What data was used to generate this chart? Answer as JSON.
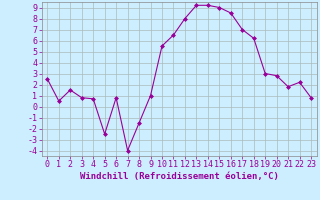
{
  "x": [
    0,
    1,
    2,
    3,
    4,
    5,
    6,
    7,
    8,
    9,
    10,
    11,
    12,
    13,
    14,
    15,
    16,
    17,
    18,
    19,
    20,
    21,
    22,
    23
  ],
  "y": [
    2.5,
    0.5,
    1.5,
    0.8,
    0.7,
    -2.5,
    0.8,
    -4.0,
    -1.5,
    1.0,
    5.5,
    6.5,
    8.0,
    9.2,
    9.2,
    9.0,
    8.5,
    7.0,
    6.2,
    3.0,
    2.8,
    1.8,
    2.2,
    0.8
  ],
  "xlabel": "Windchill (Refroidissement éolien,°C)",
  "xlim": [
    -0.5,
    23.5
  ],
  "ylim": [
    -4.5,
    9.5
  ],
  "yticks": [
    -4,
    -3,
    -2,
    -1,
    0,
    1,
    2,
    3,
    4,
    5,
    6,
    7,
    8,
    9
  ],
  "xticks": [
    0,
    1,
    2,
    3,
    4,
    5,
    6,
    7,
    8,
    9,
    10,
    11,
    12,
    13,
    14,
    15,
    16,
    17,
    18,
    19,
    20,
    21,
    22,
    23
  ],
  "line_color": "#990099",
  "marker": "D",
  "marker_size": 2,
  "bg_color": "#cceeff",
  "grid_color": "#aabbbb",
  "label_color": "#990099",
  "font_size": 6,
  "xlabel_fontsize": 6.5
}
